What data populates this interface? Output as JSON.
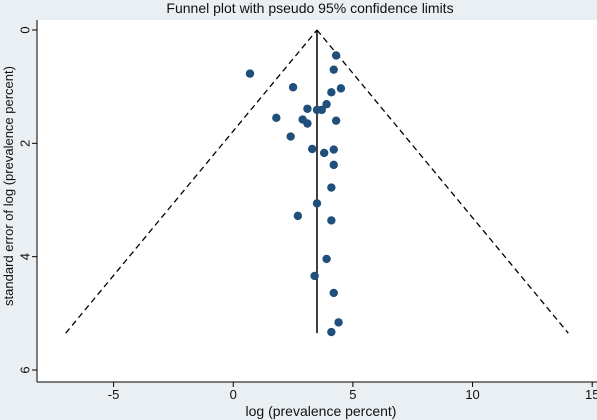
{
  "chart_data": {
    "type": "scatter",
    "title": "Funnel plot with pseudo 95% confidence limits",
    "xlabel": "log (prevalence percent)",
    "ylabel": "standard error of log (prevalence percent)",
    "xlim": [
      -8.2,
      15.2
    ],
    "ylim": [
      0,
      6
    ],
    "y_reversed": true,
    "xticks": [
      -5,
      0,
      5,
      10,
      15
    ],
    "yticks": [
      0,
      2,
      4,
      6
    ],
    "grid": false,
    "points": [
      {
        "x": 4.3,
        "y": 0.45
      },
      {
        "x": 0.7,
        "y": 0.77
      },
      {
        "x": 4.2,
        "y": 0.7
      },
      {
        "x": 2.5,
        "y": 1.01
      },
      {
        "x": 4.5,
        "y": 1.03
      },
      {
        "x": 4.1,
        "y": 1.1
      },
      {
        "x": 3.9,
        "y": 1.31
      },
      {
        "x": 3.1,
        "y": 1.39
      },
      {
        "x": 3.5,
        "y": 1.41
      },
      {
        "x": 3.7,
        "y": 1.41
      },
      {
        "x": 1.8,
        "y": 1.55
      },
      {
        "x": 2.9,
        "y": 1.58
      },
      {
        "x": 4.3,
        "y": 1.6
      },
      {
        "x": 3.1,
        "y": 1.65
      },
      {
        "x": 2.4,
        "y": 1.88
      },
      {
        "x": 3.3,
        "y": 2.1
      },
      {
        "x": 4.2,
        "y": 2.11
      },
      {
        "x": 3.8,
        "y": 2.17
      },
      {
        "x": 4.2,
        "y": 2.38
      },
      {
        "x": 4.1,
        "y": 2.78
      },
      {
        "x": 3.5,
        "y": 3.06
      },
      {
        "x": 2.7,
        "y": 3.28
      },
      {
        "x": 4.1,
        "y": 3.36
      },
      {
        "x": 3.9,
        "y": 4.04
      },
      {
        "x": 3.4,
        "y": 4.34
      },
      {
        "x": 4.2,
        "y": 4.64
      },
      {
        "x": 4.4,
        "y": 5.16
      },
      {
        "x": 4.1,
        "y": 5.33
      }
    ],
    "pooled_estimate": 3.5,
    "pooled_line_se_range": [
      0,
      5.35
    ],
    "confidence_limits": {
      "apex": [
        3.5,
        0
      ],
      "lower_end": [
        -7.0,
        5.35
      ],
      "upper_end": [
        14.0,
        5.35
      ]
    },
    "colors": {
      "point": "#1f4f7a",
      "outer_background": "#e9eff3",
      "plot_background": "#ffffff",
      "line": "#000000"
    }
  }
}
